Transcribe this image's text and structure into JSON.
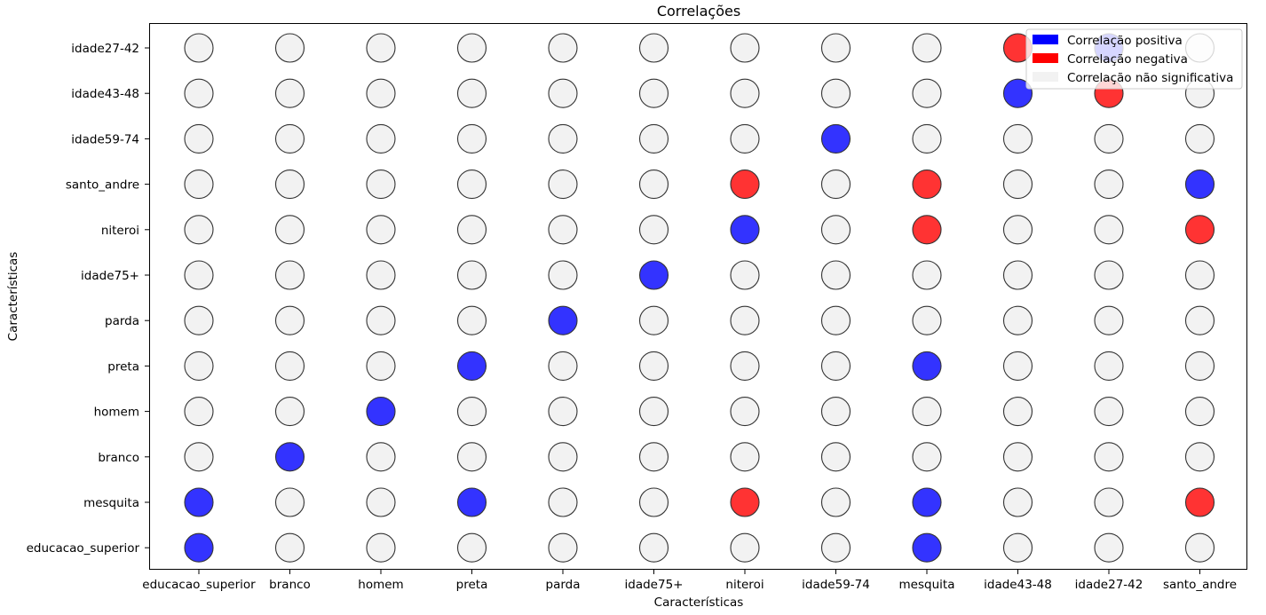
{
  "chart_data": {
    "type": "scatter",
    "title": "Correlações",
    "xlabel": "Características",
    "ylabel": "Características",
    "x_categories": [
      "educacao_superior",
      "branco",
      "homem",
      "preta",
      "parda",
      "idade75+",
      "niteroi",
      "idade59-74",
      "mesquita",
      "idade43-48",
      "idade27-42",
      "santo_andre"
    ],
    "y_categories": [
      "educacao_superior",
      "mesquita",
      "branco",
      "homem",
      "preta",
      "parda",
      "idade75+",
      "niteroi",
      "santo_andre",
      "idade59-74",
      "idade43-48",
      "idade27-42"
    ],
    "colors": {
      "positive": "#3333ff",
      "negative": "#ff3333",
      "neutral": "#f2f2f2",
      "edge": "#333333"
    },
    "legend": {
      "location": "top-right",
      "entries": [
        {
          "label": "Correlação positiva",
          "color": "#0000ff"
        },
        {
          "label": "Correlação negativa",
          "color": "#ff0000"
        },
        {
          "label": "Correlação não significativa",
          "color": "#f2f2f2"
        }
      ]
    },
    "grid": false,
    "points": [
      {
        "x": "educacao_superior",
        "y": "idade27-42",
        "correlation": "neutral"
      },
      {
        "x": "branco",
        "y": "idade27-42",
        "correlation": "neutral"
      },
      {
        "x": "homem",
        "y": "idade27-42",
        "correlation": "neutral"
      },
      {
        "x": "preta",
        "y": "idade27-42",
        "correlation": "neutral"
      },
      {
        "x": "parda",
        "y": "idade27-42",
        "correlation": "neutral"
      },
      {
        "x": "idade75+",
        "y": "idade27-42",
        "correlation": "neutral"
      },
      {
        "x": "niteroi",
        "y": "idade27-42",
        "correlation": "neutral"
      },
      {
        "x": "idade59-74",
        "y": "idade27-42",
        "correlation": "neutral"
      },
      {
        "x": "mesquita",
        "y": "idade27-42",
        "correlation": "neutral"
      },
      {
        "x": "idade43-48",
        "y": "idade27-42",
        "correlation": "negative"
      },
      {
        "x": "idade27-42",
        "y": "idade27-42",
        "correlation": "positive"
      },
      {
        "x": "santo_andre",
        "y": "idade27-42",
        "correlation": "neutral"
      },
      {
        "x": "educacao_superior",
        "y": "idade43-48",
        "correlation": "neutral"
      },
      {
        "x": "branco",
        "y": "idade43-48",
        "correlation": "neutral"
      },
      {
        "x": "homem",
        "y": "idade43-48",
        "correlation": "neutral"
      },
      {
        "x": "preta",
        "y": "idade43-48",
        "correlation": "neutral"
      },
      {
        "x": "parda",
        "y": "idade43-48",
        "correlation": "neutral"
      },
      {
        "x": "idade75+",
        "y": "idade43-48",
        "correlation": "neutral"
      },
      {
        "x": "niteroi",
        "y": "idade43-48",
        "correlation": "neutral"
      },
      {
        "x": "idade59-74",
        "y": "idade43-48",
        "correlation": "neutral"
      },
      {
        "x": "mesquita",
        "y": "idade43-48",
        "correlation": "neutral"
      },
      {
        "x": "idade43-48",
        "y": "idade43-48",
        "correlation": "positive"
      },
      {
        "x": "idade27-42",
        "y": "idade43-48",
        "correlation": "negative"
      },
      {
        "x": "santo_andre",
        "y": "idade43-48",
        "correlation": "neutral"
      },
      {
        "x": "educacao_superior",
        "y": "idade59-74",
        "correlation": "neutral"
      },
      {
        "x": "branco",
        "y": "idade59-74",
        "correlation": "neutral"
      },
      {
        "x": "homem",
        "y": "idade59-74",
        "correlation": "neutral"
      },
      {
        "x": "preta",
        "y": "idade59-74",
        "correlation": "neutral"
      },
      {
        "x": "parda",
        "y": "idade59-74",
        "correlation": "neutral"
      },
      {
        "x": "idade75+",
        "y": "idade59-74",
        "correlation": "neutral"
      },
      {
        "x": "niteroi",
        "y": "idade59-74",
        "correlation": "neutral"
      },
      {
        "x": "idade59-74",
        "y": "idade59-74",
        "correlation": "positive"
      },
      {
        "x": "mesquita",
        "y": "idade59-74",
        "correlation": "neutral"
      },
      {
        "x": "idade43-48",
        "y": "idade59-74",
        "correlation": "neutral"
      },
      {
        "x": "idade27-42",
        "y": "idade59-74",
        "correlation": "neutral"
      },
      {
        "x": "santo_andre",
        "y": "idade59-74",
        "correlation": "neutral"
      },
      {
        "x": "educacao_superior",
        "y": "santo_andre",
        "correlation": "neutral"
      },
      {
        "x": "branco",
        "y": "santo_andre",
        "correlation": "neutral"
      },
      {
        "x": "homem",
        "y": "santo_andre",
        "correlation": "neutral"
      },
      {
        "x": "preta",
        "y": "santo_andre",
        "correlation": "neutral"
      },
      {
        "x": "parda",
        "y": "santo_andre",
        "correlation": "neutral"
      },
      {
        "x": "idade75+",
        "y": "santo_andre",
        "correlation": "neutral"
      },
      {
        "x": "niteroi",
        "y": "santo_andre",
        "correlation": "negative"
      },
      {
        "x": "idade59-74",
        "y": "santo_andre",
        "correlation": "neutral"
      },
      {
        "x": "mesquita",
        "y": "santo_andre",
        "correlation": "negative"
      },
      {
        "x": "idade43-48",
        "y": "santo_andre",
        "correlation": "neutral"
      },
      {
        "x": "idade27-42",
        "y": "santo_andre",
        "correlation": "neutral"
      },
      {
        "x": "santo_andre",
        "y": "santo_andre",
        "correlation": "positive"
      },
      {
        "x": "educacao_superior",
        "y": "niteroi",
        "correlation": "neutral"
      },
      {
        "x": "branco",
        "y": "niteroi",
        "correlation": "neutral"
      },
      {
        "x": "homem",
        "y": "niteroi",
        "correlation": "neutral"
      },
      {
        "x": "preta",
        "y": "niteroi",
        "correlation": "neutral"
      },
      {
        "x": "parda",
        "y": "niteroi",
        "correlation": "neutral"
      },
      {
        "x": "idade75+",
        "y": "niteroi",
        "correlation": "neutral"
      },
      {
        "x": "niteroi",
        "y": "niteroi",
        "correlation": "positive"
      },
      {
        "x": "idade59-74",
        "y": "niteroi",
        "correlation": "neutral"
      },
      {
        "x": "mesquita",
        "y": "niteroi",
        "correlation": "negative"
      },
      {
        "x": "idade43-48",
        "y": "niteroi",
        "correlation": "neutral"
      },
      {
        "x": "idade27-42",
        "y": "niteroi",
        "correlation": "neutral"
      },
      {
        "x": "santo_andre",
        "y": "niteroi",
        "correlation": "negative"
      },
      {
        "x": "educacao_superior",
        "y": "idade75+",
        "correlation": "neutral"
      },
      {
        "x": "branco",
        "y": "idade75+",
        "correlation": "neutral"
      },
      {
        "x": "homem",
        "y": "idade75+",
        "correlation": "neutral"
      },
      {
        "x": "preta",
        "y": "idade75+",
        "correlation": "neutral"
      },
      {
        "x": "parda",
        "y": "idade75+",
        "correlation": "neutral"
      },
      {
        "x": "idade75+",
        "y": "idade75+",
        "correlation": "positive"
      },
      {
        "x": "niteroi",
        "y": "idade75+",
        "correlation": "neutral"
      },
      {
        "x": "idade59-74",
        "y": "idade75+",
        "correlation": "neutral"
      },
      {
        "x": "mesquita",
        "y": "idade75+",
        "correlation": "neutral"
      },
      {
        "x": "idade43-48",
        "y": "idade75+",
        "correlation": "neutral"
      },
      {
        "x": "idade27-42",
        "y": "idade75+",
        "correlation": "neutral"
      },
      {
        "x": "santo_andre",
        "y": "idade75+",
        "correlation": "neutral"
      },
      {
        "x": "educacao_superior",
        "y": "parda",
        "correlation": "neutral"
      },
      {
        "x": "branco",
        "y": "parda",
        "correlation": "neutral"
      },
      {
        "x": "homem",
        "y": "parda",
        "correlation": "neutral"
      },
      {
        "x": "preta",
        "y": "parda",
        "correlation": "neutral"
      },
      {
        "x": "parda",
        "y": "parda",
        "correlation": "positive"
      },
      {
        "x": "idade75+",
        "y": "parda",
        "correlation": "neutral"
      },
      {
        "x": "niteroi",
        "y": "parda",
        "correlation": "neutral"
      },
      {
        "x": "idade59-74",
        "y": "parda",
        "correlation": "neutral"
      },
      {
        "x": "mesquita",
        "y": "parda",
        "correlation": "neutral"
      },
      {
        "x": "idade43-48",
        "y": "parda",
        "correlation": "neutral"
      },
      {
        "x": "idade27-42",
        "y": "parda",
        "correlation": "neutral"
      },
      {
        "x": "santo_andre",
        "y": "parda",
        "correlation": "neutral"
      },
      {
        "x": "educacao_superior",
        "y": "preta",
        "correlation": "neutral"
      },
      {
        "x": "branco",
        "y": "preta",
        "correlation": "neutral"
      },
      {
        "x": "homem",
        "y": "preta",
        "correlation": "neutral"
      },
      {
        "x": "preta",
        "y": "preta",
        "correlation": "positive"
      },
      {
        "x": "parda",
        "y": "preta",
        "correlation": "neutral"
      },
      {
        "x": "idade75+",
        "y": "preta",
        "correlation": "neutral"
      },
      {
        "x": "niteroi",
        "y": "preta",
        "correlation": "neutral"
      },
      {
        "x": "idade59-74",
        "y": "preta",
        "correlation": "neutral"
      },
      {
        "x": "mesquita",
        "y": "preta",
        "correlation": "positive"
      },
      {
        "x": "idade43-48",
        "y": "preta",
        "correlation": "neutral"
      },
      {
        "x": "idade27-42",
        "y": "preta",
        "correlation": "neutral"
      },
      {
        "x": "santo_andre",
        "y": "preta",
        "correlation": "neutral"
      },
      {
        "x": "educacao_superior",
        "y": "homem",
        "correlation": "neutral"
      },
      {
        "x": "branco",
        "y": "homem",
        "correlation": "neutral"
      },
      {
        "x": "homem",
        "y": "homem",
        "correlation": "positive"
      },
      {
        "x": "preta",
        "y": "homem",
        "correlation": "neutral"
      },
      {
        "x": "parda",
        "y": "homem",
        "correlation": "neutral"
      },
      {
        "x": "idade75+",
        "y": "homem",
        "correlation": "neutral"
      },
      {
        "x": "niteroi",
        "y": "homem",
        "correlation": "neutral"
      },
      {
        "x": "idade59-74",
        "y": "homem",
        "correlation": "neutral"
      },
      {
        "x": "mesquita",
        "y": "homem",
        "correlation": "neutral"
      },
      {
        "x": "idade43-48",
        "y": "homem",
        "correlation": "neutral"
      },
      {
        "x": "idade27-42",
        "y": "homem",
        "correlation": "neutral"
      },
      {
        "x": "santo_andre",
        "y": "homem",
        "correlation": "neutral"
      },
      {
        "x": "educacao_superior",
        "y": "branco",
        "correlation": "neutral"
      },
      {
        "x": "branco",
        "y": "branco",
        "correlation": "positive"
      },
      {
        "x": "homem",
        "y": "branco",
        "correlation": "neutral"
      },
      {
        "x": "preta",
        "y": "branco",
        "correlation": "neutral"
      },
      {
        "x": "parda",
        "y": "branco",
        "correlation": "neutral"
      },
      {
        "x": "idade75+",
        "y": "branco",
        "correlation": "neutral"
      },
      {
        "x": "niteroi",
        "y": "branco",
        "correlation": "neutral"
      },
      {
        "x": "idade59-74",
        "y": "branco",
        "correlation": "neutral"
      },
      {
        "x": "mesquita",
        "y": "branco",
        "correlation": "neutral"
      },
      {
        "x": "idade43-48",
        "y": "branco",
        "correlation": "neutral"
      },
      {
        "x": "idade27-42",
        "y": "branco",
        "correlation": "neutral"
      },
      {
        "x": "santo_andre",
        "y": "branco",
        "correlation": "neutral"
      },
      {
        "x": "educacao_superior",
        "y": "mesquita",
        "correlation": "positive"
      },
      {
        "x": "branco",
        "y": "mesquita",
        "correlation": "neutral"
      },
      {
        "x": "homem",
        "y": "mesquita",
        "correlation": "neutral"
      },
      {
        "x": "preta",
        "y": "mesquita",
        "correlation": "positive"
      },
      {
        "x": "parda",
        "y": "mesquita",
        "correlation": "neutral"
      },
      {
        "x": "idade75+",
        "y": "mesquita",
        "correlation": "neutral"
      },
      {
        "x": "niteroi",
        "y": "mesquita",
        "correlation": "negative"
      },
      {
        "x": "idade59-74",
        "y": "mesquita",
        "correlation": "neutral"
      },
      {
        "x": "mesquita",
        "y": "mesquita",
        "correlation": "positive"
      },
      {
        "x": "idade43-48",
        "y": "mesquita",
        "correlation": "neutral"
      },
      {
        "x": "idade27-42",
        "y": "mesquita",
        "correlation": "neutral"
      },
      {
        "x": "santo_andre",
        "y": "mesquita",
        "correlation": "negative"
      },
      {
        "x": "educacao_superior",
        "y": "educacao_superior",
        "correlation": "positive"
      },
      {
        "x": "branco",
        "y": "educacao_superior",
        "correlation": "neutral"
      },
      {
        "x": "homem",
        "y": "educacao_superior",
        "correlation": "neutral"
      },
      {
        "x": "preta",
        "y": "educacao_superior",
        "correlation": "neutral"
      },
      {
        "x": "parda",
        "y": "educacao_superior",
        "correlation": "neutral"
      },
      {
        "x": "idade75+",
        "y": "educacao_superior",
        "correlation": "neutral"
      },
      {
        "x": "niteroi",
        "y": "educacao_superior",
        "correlation": "neutral"
      },
      {
        "x": "idade59-74",
        "y": "educacao_superior",
        "correlation": "neutral"
      },
      {
        "x": "mesquita",
        "y": "educacao_superior",
        "correlation": "positive"
      },
      {
        "x": "idade43-48",
        "y": "educacao_superior",
        "correlation": "neutral"
      },
      {
        "x": "idade27-42",
        "y": "educacao_superior",
        "correlation": "neutral"
      },
      {
        "x": "santo_andre",
        "y": "educacao_superior",
        "correlation": "neutral"
      }
    ]
  }
}
